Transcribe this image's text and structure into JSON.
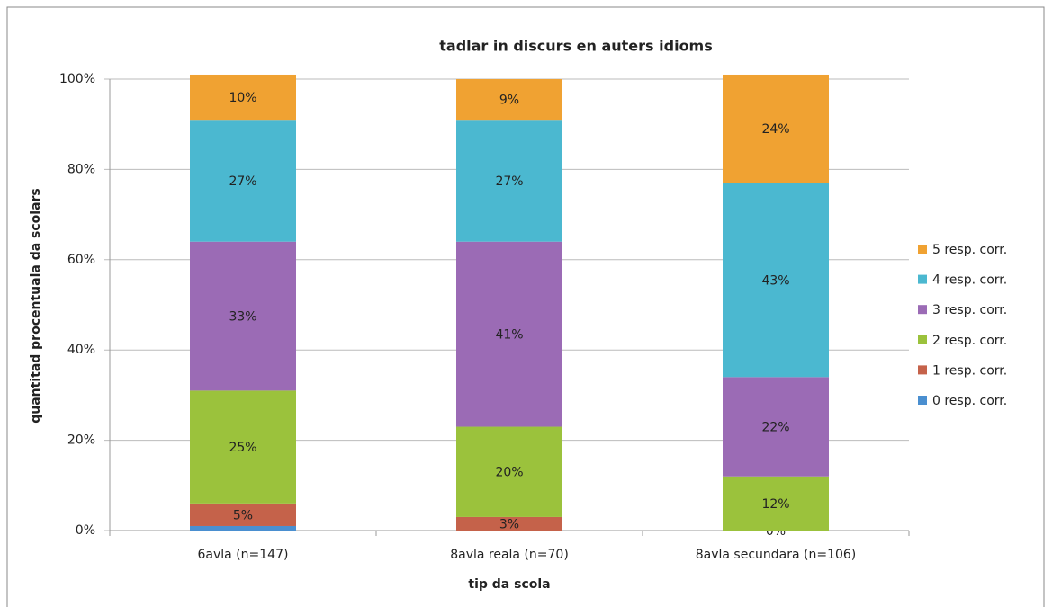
{
  "chart_data": {
    "type": "stacked_bar",
    "title": "tadlar in discurs en auters idioms",
    "x_label": "tip da scola",
    "y_label": "quantitad procentuala da scolars",
    "categories": [
      "6avla (n=147)",
      "8avla reala (n=70)",
      "8avla secundara (n=106)"
    ],
    "series": [
      {
        "name": "0 resp. corr.",
        "color": "#4a8fd0",
        "values": [
          1,
          0,
          0
        ],
        "value_labels": [
          null,
          null,
          null
        ]
      },
      {
        "name": "1 resp. corr.",
        "color": "#c5624a",
        "values": [
          5,
          3,
          0
        ],
        "value_labels": [
          "5%",
          "3%",
          "0%"
        ]
      },
      {
        "name": "2 resp. corr.",
        "color": "#9bc23c",
        "values": [
          25,
          20,
          12
        ],
        "value_labels": [
          "25%",
          "20%",
          "12%"
        ]
      },
      {
        "name": "3 resp. corr.",
        "color": "#9b6bb5",
        "values": [
          33,
          41,
          22
        ],
        "value_labels": [
          "33%",
          "41%",
          "22%"
        ]
      },
      {
        "name": "4 resp. corr.",
        "color": "#4bb8d0",
        "values": [
          27,
          27,
          43
        ],
        "value_labels": [
          "27%",
          "27%",
          "43%"
        ]
      },
      {
        "name": "5 resp. corr.",
        "color": "#f0a232",
        "values": [
          10,
          9,
          24
        ],
        "value_labels": [
          "10%",
          "9%",
          "24%"
        ]
      }
    ],
    "ylim": [
      0,
      100
    ],
    "yticks": [
      {
        "value": 0,
        "label": "0%"
      },
      {
        "value": 20,
        "label": "20%"
      },
      {
        "value": 40,
        "label": "40%"
      },
      {
        "value": 60,
        "label": "60%"
      },
      {
        "value": 80,
        "label": "80%"
      },
      {
        "value": 100,
        "label": "100%"
      }
    ],
    "grid": true,
    "legend": "right"
  }
}
